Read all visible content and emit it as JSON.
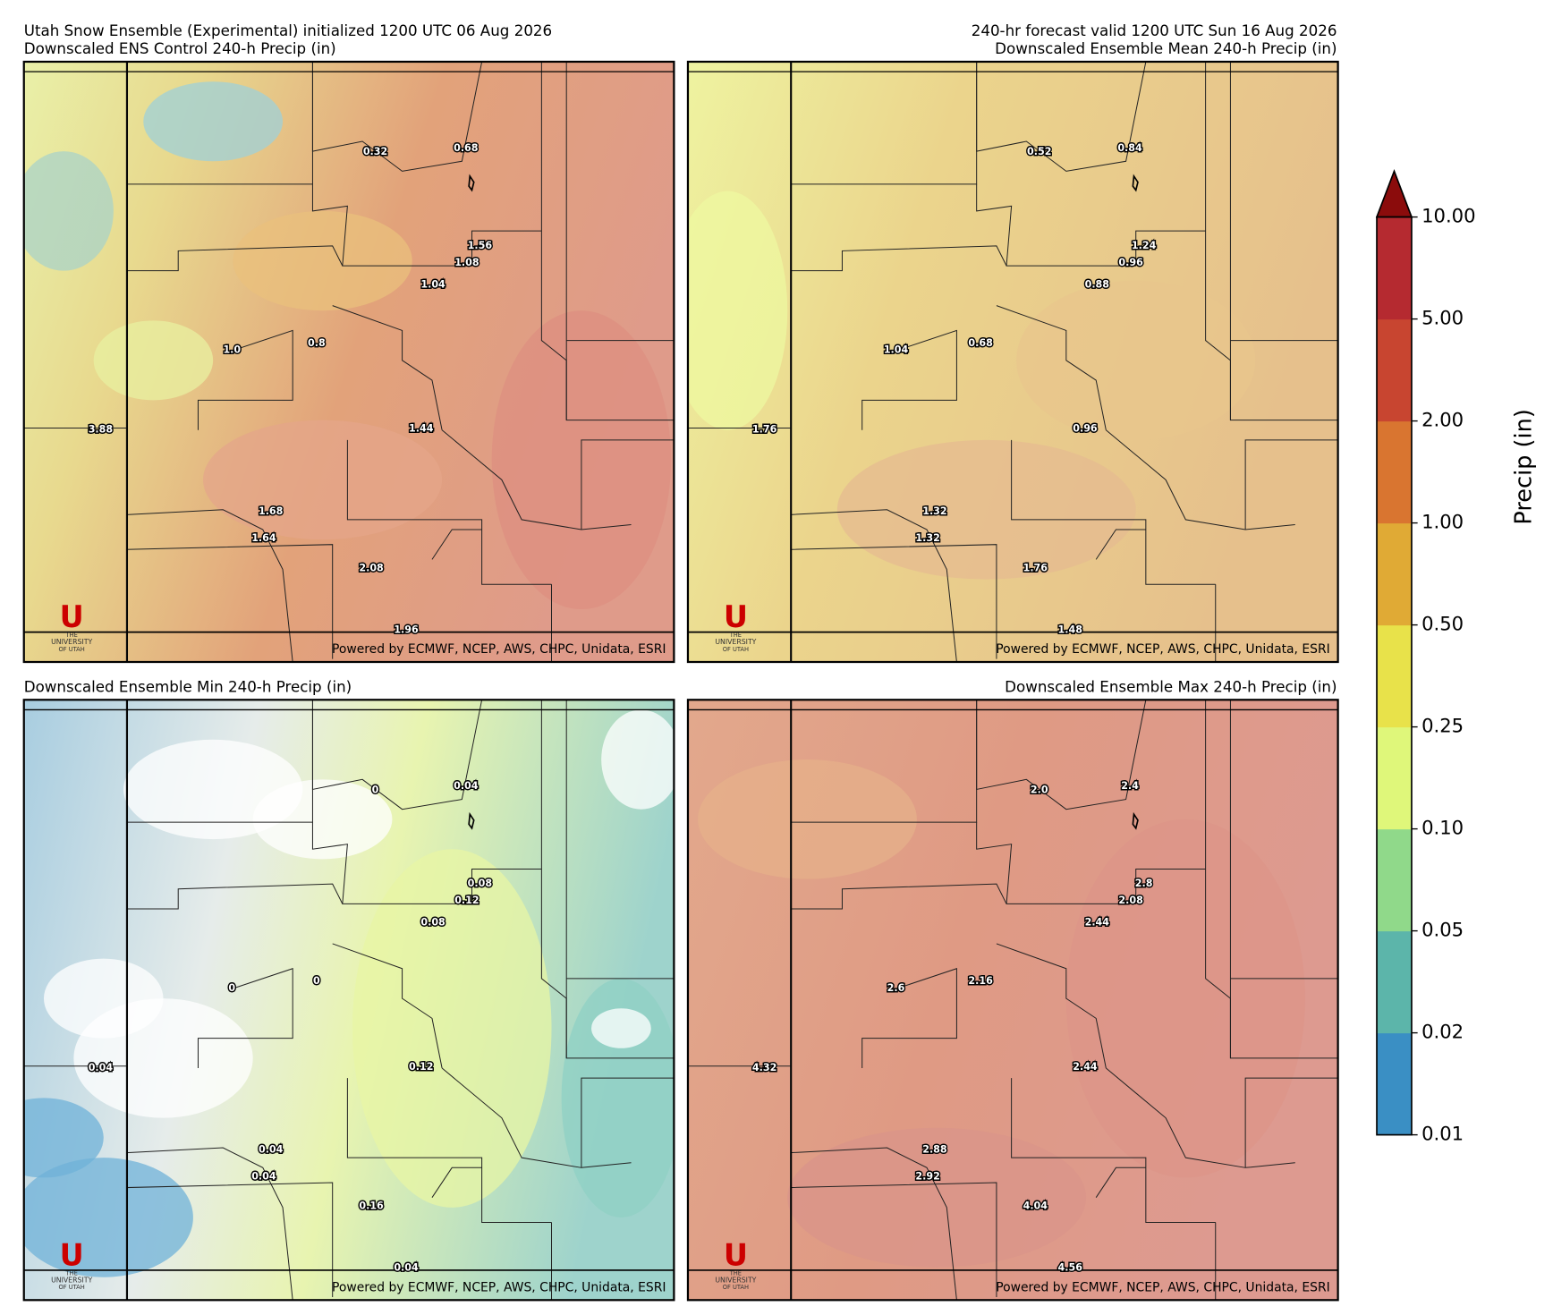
{
  "header": {
    "left": [
      "Utah Snow Ensemble (Experimental) initialized 1200 UTC 06 Aug 2026",
      "Downscaled ENS Control 240-h Precip (in)"
    ],
    "right": [
      "240-hr forecast valid 1200 UTC Sun 16 Aug 2026",
      "Downscaled Ensemble Mean 240-h Precip (in)"
    ]
  },
  "panels": [
    {
      "title": "Downscaled ENS Control 240-h Precip (in)",
      "theme": "control",
      "points": [
        "0.32",
        "0.68",
        "1.56",
        "1.08",
        "1.04",
        "1.0",
        "0.8",
        "3.88",
        "1.44",
        "1.68",
        "1.64",
        "2.08",
        "1.96"
      ]
    },
    {
      "title": "Downscaled Ensemble Mean 240-h Precip (in)",
      "theme": "mean",
      "points": [
        "0.52",
        "0.84",
        "1.24",
        "0.96",
        "0.88",
        "1.04",
        "0.68",
        "1.76",
        "0.96",
        "1.32",
        "1.32",
        "1.76",
        "1.48"
      ]
    },
    {
      "title": "Downscaled Ensemble Min 240-h Precip (in)",
      "theme": "min",
      "points": [
        "0",
        "0.04",
        "0.08",
        "0.12",
        "0.08",
        "0",
        "0",
        "0.04",
        "0.12",
        "0.04",
        "0.04",
        "0.16",
        "0.04"
      ]
    },
    {
      "title": "Downscaled Ensemble Max 240-h Precip (in)",
      "theme": "max",
      "points": [
        "2.0",
        "2.4",
        "2.8",
        "2.08",
        "2.44",
        "2.6",
        "2.16",
        "4.32",
        "2.44",
        "2.88",
        "2.92",
        "4.04",
        "4.56"
      ]
    }
  ],
  "credit": "Powered by ECMWF, NCEP, AWS, CHPC, Unidata, ESRI",
  "logo": {
    "mark": "U",
    "line1": "THE",
    "line2": "UNIVERSITY",
    "line3": "OF UTAH"
  },
  "colorbar": {
    "label": "Precip (in)",
    "ticks": [
      {
        "value": 0.01,
        "label": "0.01"
      },
      {
        "value": 0.02,
        "label": "0.02"
      },
      {
        "value": 0.05,
        "label": "0.05"
      },
      {
        "value": 0.1,
        "label": "0.10"
      },
      {
        "value": 0.25,
        "label": "0.25"
      },
      {
        "value": 0.5,
        "label": "0.50"
      },
      {
        "value": 1,
        "label": "1.00"
      },
      {
        "value": 2,
        "label": "2.00"
      },
      {
        "value": 5,
        "label": "5.00"
      },
      {
        "value": 10,
        "label": "10.00"
      }
    ],
    "colors": [
      "#3a8fc4",
      "#5cb5aa",
      "#90d98a",
      "#dff77a",
      "#e8e24a",
      "#e0aa35",
      "#d97530",
      "#c84530",
      "#b52a30"
    ],
    "extend_color": "#8b0c0c"
  }
}
